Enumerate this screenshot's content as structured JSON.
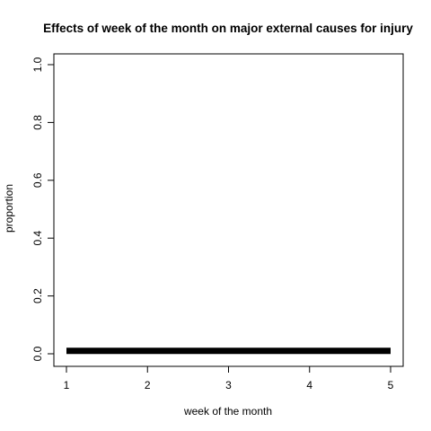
{
  "chart_data": {
    "type": "line",
    "title": "Effects of week of the month on major external causes for injury",
    "xlabel": "week of the month",
    "ylabel": "proportion",
    "x": [
      1,
      2,
      3,
      4,
      5
    ],
    "xlim": [
      1,
      5
    ],
    "ylim": [
      0,
      1
    ],
    "x_ticks": [
      1,
      2,
      3,
      4,
      5
    ],
    "y_ticks": [
      0.0,
      0.2,
      0.4,
      0.6,
      0.8,
      1.0
    ],
    "x_tick_labels": [
      "1",
      "2",
      "3",
      "4",
      "5"
    ],
    "y_tick_labels": [
      "0.0",
      "0.2",
      "0.4",
      "0.6",
      "0.8",
      "1.0"
    ],
    "grid": false,
    "series": [
      {
        "values": [
          0.01,
          0.01,
          0.01,
          0.01,
          0.01
        ],
        "color": "#000000"
      }
    ]
  }
}
